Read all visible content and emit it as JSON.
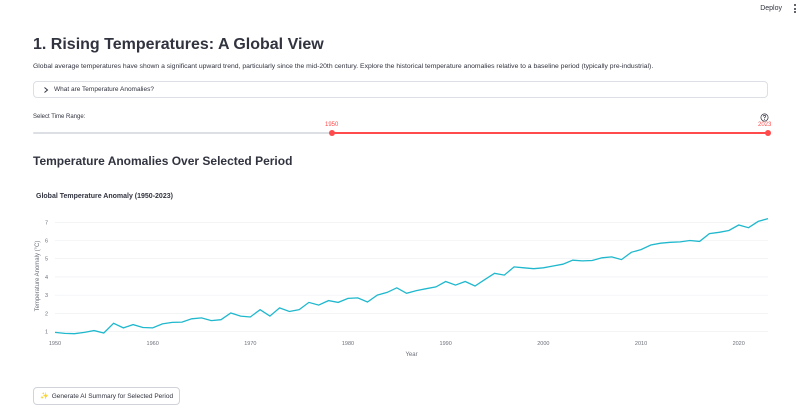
{
  "header": {
    "deploy_label": "Deploy"
  },
  "page": {
    "title": "1. Rising Temperatures: A Global View",
    "intro": "Global average temperatures have shown a significant upward trend, particularly since the mid-20th century. Explore the historical temperature anomalies relative to a baseline period (typically pre-industrial)."
  },
  "expander": {
    "label": "What are Temperature Anomalies?"
  },
  "slider": {
    "label": "Select Time Range:",
    "start_value": "1950",
    "end_value": "2023",
    "min": 1850,
    "max": 2023,
    "start": 1950,
    "end": 2023
  },
  "section": {
    "title": "Temperature Anomalies Over Selected Period"
  },
  "ai_button": {
    "label": "Generate AI Summary for Selected Period"
  },
  "colors": {
    "accent": "#ff4b4b",
    "line": "#1fb8cd",
    "text": "#31333f"
  },
  "chart_data": {
    "type": "line",
    "title": "Global Temperature Anomaly (1950-2023)",
    "xlabel": "Year",
    "ylabel": "Temperature Anomaly (°C)",
    "xlim": [
      1950,
      2023
    ],
    "ylim": [
      0.7,
      7.4
    ],
    "xticks": [
      1950,
      1960,
      1970,
      1980,
      1990,
      2000,
      2010,
      2020
    ],
    "yticks": [
      1,
      2,
      3,
      4,
      5,
      6,
      7
    ],
    "grid": true,
    "series": [
      {
        "x": [
          1950,
          1951,
          1952,
          1953,
          1954,
          1955,
          1956,
          1957,
          1958,
          1959,
          1960,
          1961,
          1962,
          1963,
          1964,
          1965,
          1966,
          1967,
          1968,
          1969,
          1970,
          1971,
          1972,
          1973,
          1974,
          1975,
          1976,
          1977,
          1978,
          1979,
          1980,
          1981,
          1982,
          1983,
          1984,
          1985,
          1986,
          1987,
          1988,
          1989,
          1990,
          1991,
          1992,
          1993,
          1994,
          1995,
          1996,
          1997,
          1998,
          1999,
          2000,
          2001,
          2002,
          2003,
          2004,
          2005,
          2006,
          2007,
          2008,
          2009,
          2010,
          2011,
          2012,
          2013,
          2014,
          2015,
          2016,
          2017,
          2018,
          2019,
          2020,
          2021,
          2022,
          2023
        ],
        "values": [
          0.95,
          0.9,
          0.88,
          0.95,
          1.05,
          0.92,
          1.45,
          1.2,
          1.38,
          1.22,
          1.2,
          1.42,
          1.5,
          1.52,
          1.7,
          1.75,
          1.6,
          1.65,
          2.02,
          1.85,
          1.8,
          2.2,
          1.85,
          2.3,
          2.1,
          2.2,
          2.6,
          2.45,
          2.7,
          2.6,
          2.82,
          2.85,
          2.62,
          3.0,
          3.15,
          3.4,
          3.1,
          3.25,
          3.35,
          3.45,
          3.75,
          3.55,
          3.75,
          3.5,
          3.85,
          4.2,
          4.1,
          4.55,
          4.5,
          4.45,
          4.5,
          4.6,
          4.7,
          4.92,
          4.88,
          4.9,
          5.05,
          5.1,
          4.95,
          5.35,
          5.5,
          5.75,
          5.85,
          5.9,
          5.92,
          6.0,
          5.95,
          6.38,
          6.45,
          6.55,
          6.85,
          6.7,
          7.05,
          7.2
        ]
      }
    ]
  }
}
